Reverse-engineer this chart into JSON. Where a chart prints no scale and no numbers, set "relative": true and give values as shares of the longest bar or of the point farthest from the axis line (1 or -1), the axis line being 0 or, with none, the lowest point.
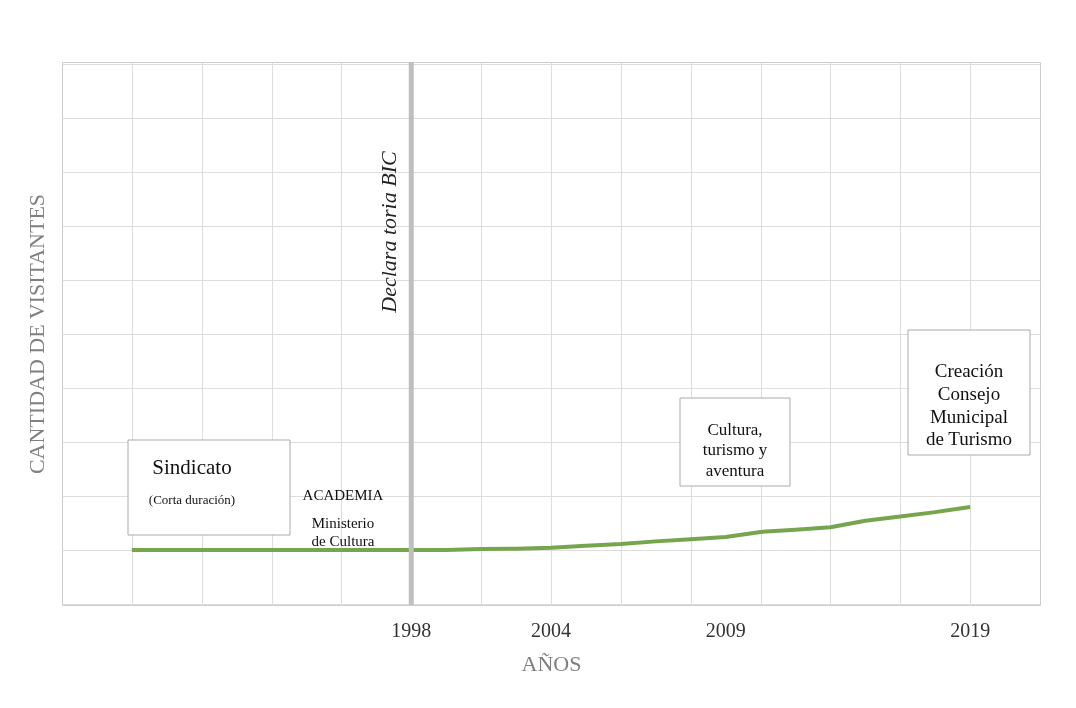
{
  "chart_data": {
    "type": "line",
    "relative": true,
    "xlabel": "AÑOS",
    "ylabel": "CANTIDAD DE VISITANTES",
    "categories": [
      null,
      null,
      null,
      null,
      null,
      null,
      null,
      null,
      "1998",
      null,
      null,
      null,
      "2004",
      null,
      null,
      null,
      null,
      "2009",
      null,
      null,
      null,
      null,
      null,
      null,
      "2019",
      null
    ],
    "series": [
      {
        "color": "#76a54e",
        "values": [
          0,
          0,
          0,
          0,
          0,
          0,
          0,
          0,
          0,
          0,
          0.02,
          0.03,
          0.05,
          0.1,
          0.14,
          0.2,
          0.25,
          0.3,
          0.42,
          0.47,
          0.53,
          0.68,
          0.78,
          0.88,
          1,
          null
        ]
      }
    ],
    "ref_lines": [
      {
        "axis": "x",
        "value": "1998",
        "label": "Declara toria BIC",
        "color": "#bfbfbf"
      }
    ],
    "annotations": [
      "Sindicato",
      "(Corta duración)",
      "ACADEMIA",
      "Ministerio de Cultura",
      "Cultura, turismo y aventura",
      "Creación Consejo Municipal de Turismo"
    ],
    "grid": true,
    "legend": false,
    "marker": "none",
    "line_style": "solid"
  }
}
